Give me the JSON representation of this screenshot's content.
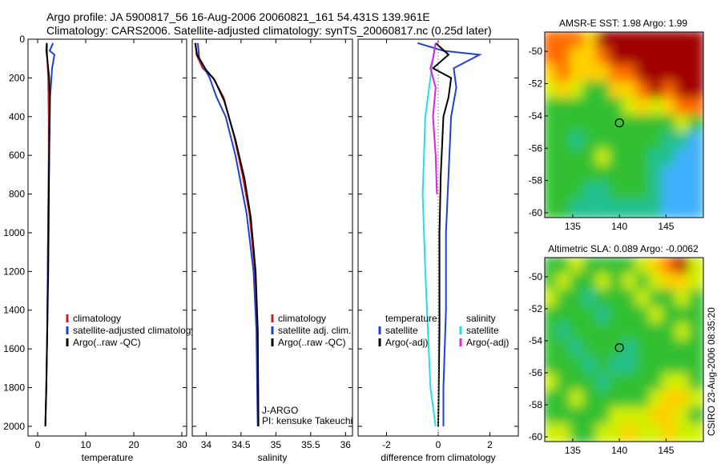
{
  "figure": {
    "title_line1": "Argo profile: JA 5900817_56 16-Aug-2006 20060821_161 54.431S 139.961E",
    "title_line2": "Climatology: CARS2006. Satellite-adjusted climatology: synTS_20060817.nc (0.25d later)",
    "stamp": "CSIRO 23-Aug-2006 08:35:20"
  },
  "colors": {
    "climatology": "#cc1f1f",
    "satellite": "#1f3fd6",
    "argo": "#000000",
    "salinity_satellite": "#22e0e0",
    "salinity_argo": "#e020e0"
  },
  "chart_data": [
    {
      "type": "line",
      "id": "temperature",
      "xlabel": "temperature",
      "ylabel": "",
      "xlim": [
        -2,
        31
      ],
      "ylim": [
        2050,
        0
      ],
      "xticks": [
        0,
        10,
        20,
        30
      ],
      "yticks": [
        0,
        200,
        400,
        600,
        800,
        1000,
        1200,
        1400,
        1600,
        1800,
        2000
      ],
      "legend_location": "lower-right",
      "series": [
        {
          "name": "climatology",
          "color": "#cc1f1f",
          "x": [
            1.9,
            2.0,
            2.2,
            2.3,
            2.3,
            2.2,
            2.1,
            2.0,
            1.8,
            1.6
          ],
          "y": [
            20,
            100,
            200,
            400,
            600,
            900,
            1200,
            1500,
            1800,
            2000
          ]
        },
        {
          "name": "satellite-adjusted climatology",
          "color": "#1f3fd6",
          "x": [
            3.2,
            2.5,
            3.5,
            3.0,
            2.6,
            2.4,
            2.2,
            2.1,
            2.0,
            1.8,
            1.6
          ],
          "y": [
            20,
            60,
            80,
            150,
            300,
            600,
            900,
            1200,
            1500,
            1800,
            2000
          ]
        },
        {
          "name": "Argo(..raw -QC)",
          "color": "#000000",
          "x": [
            1.9,
            1.8,
            2.0,
            2.2,
            2.4,
            2.5,
            2.4,
            2.3,
            2.2,
            2.0,
            1.8,
            1.6
          ],
          "y": [
            20,
            60,
            100,
            150,
            200,
            300,
            600,
            900,
            1200,
            1500,
            1800,
            2000
          ]
        }
      ]
    },
    {
      "type": "line",
      "id": "salinity",
      "xlabel": "salinity",
      "xlim": [
        33.8,
        36.1
      ],
      "ylim": [
        2050,
        0
      ],
      "xticks": [
        34,
        34.5,
        35,
        35.5,
        36
      ],
      "legend_location": "lower-right",
      "annotation": [
        "J-ARGO",
        "PI: kensuke Takeuchi"
      ],
      "series": [
        {
          "name": "climatology",
          "color": "#cc1f1f",
          "x": [
            33.85,
            33.86,
            33.95,
            34.1,
            34.25,
            34.4,
            34.52,
            34.62,
            34.7,
            34.74,
            34.75
          ],
          "y": [
            20,
            80,
            150,
            200,
            300,
            500,
            700,
            900,
            1200,
            1500,
            2000
          ]
        },
        {
          "name": "satellite adj. clim.",
          "color": "#1f3fd6",
          "x": [
            33.88,
            33.9,
            34.05,
            34.15,
            34.28,
            34.42,
            34.58,
            34.68,
            34.72,
            34.74
          ],
          "y": [
            20,
            100,
            200,
            300,
            400,
            600,
            900,
            1200,
            1500,
            2000
          ]
        },
        {
          "name": "Argo(..raw -QC)",
          "color": "#000000",
          "x": [
            33.84,
            33.87,
            34.0,
            34.12,
            34.26,
            34.42,
            34.55,
            34.64,
            34.71,
            34.74,
            34.75
          ],
          "y": [
            20,
            80,
            160,
            210,
            320,
            520,
            720,
            920,
            1200,
            1500,
            2000
          ]
        }
      ]
    },
    {
      "type": "line",
      "id": "difference",
      "xlabel": "difference from climatology",
      "xlim": [
        -3.1,
        3.1
      ],
      "ylim": [
        2050,
        0
      ],
      "xticks": [
        -2,
        0,
        2
      ],
      "legend_location": "lower-right",
      "legend_headers": [
        "temperature",
        "salinity"
      ],
      "series": [
        {
          "name": "satellite",
          "group": "temperature",
          "color": "#1f3fd6",
          "x": [
            -0.8,
            0.2,
            1.6,
            0.6,
            0.7,
            0.5,
            0.4,
            0.3,
            0.3,
            0.2,
            0.2
          ],
          "y": [
            20,
            60,
            80,
            150,
            250,
            400,
            700,
            1000,
            1400,
            1800,
            2000
          ]
        },
        {
          "name": "Argo(-adj)",
          "group": "temperature",
          "color": "#000000",
          "x": [
            -0.1,
            0.4,
            -0.2,
            0.5,
            0.4,
            0.2,
            0.1,
            0.05,
            0.05,
            0.0
          ],
          "y": [
            20,
            80,
            150,
            200,
            300,
            400,
            700,
            1000,
            1500,
            2000
          ]
        },
        {
          "name": "satellite",
          "group": "salinity",
          "color": "#22e0e0",
          "x": [
            -0.1,
            -0.2,
            -0.3,
            -0.5,
            -0.6,
            -0.5,
            -0.4,
            -0.3,
            -0.1
          ],
          "y": [
            20,
            100,
            200,
            400,
            800,
            1200,
            1500,
            1800,
            2000
          ]
        },
        {
          "name": "Argo(-adj)",
          "group": "salinity",
          "color": "#e020e0",
          "x": [
            -0.1,
            -0.2,
            -0.3,
            -0.1,
            -0.2,
            -0.1,
            -0.05
          ],
          "y": [
            20,
            100,
            150,
            250,
            400,
            600,
            800
          ]
        }
      ]
    },
    {
      "type": "heatmap",
      "id": "sst-map",
      "title": "AMSR-E SST: 1.98 Argo: 1.99",
      "xlim": [
        132,
        149
      ],
      "ylim": [
        -60.3,
        -48.8
      ],
      "xticks": [
        135,
        140,
        145
      ],
      "yticks": [
        -50,
        -52,
        -54,
        -56,
        -58,
        -60
      ],
      "marker": {
        "lon": 140,
        "lat": -54.43
      },
      "palette": [
        "#a00000",
        "#ff6a00",
        "#ffd000",
        "#d0f000",
        "#30c030",
        "#20c090",
        "#40b0ff"
      ],
      "field": [
        [
          1,
          1,
          1,
          2,
          0,
          0,
          0,
          0,
          0,
          0,
          0,
          0
        ],
        [
          1,
          1,
          2,
          2,
          1,
          0,
          0,
          0,
          0,
          0,
          0,
          0
        ],
        [
          2,
          1,
          2,
          2,
          2,
          1,
          1,
          0,
          0,
          0,
          0,
          0
        ],
        [
          3,
          2,
          3,
          4,
          4,
          2,
          2,
          1,
          0,
          1,
          0,
          0
        ],
        [
          4,
          4,
          4,
          4,
          4,
          4,
          3,
          2,
          3,
          2,
          1,
          1
        ],
        [
          4,
          4,
          4,
          4,
          4,
          4,
          4,
          4,
          4,
          4,
          3,
          4
        ],
        [
          4,
          4,
          5,
          4,
          4,
          4,
          4,
          4,
          4,
          5,
          5,
          6
        ],
        [
          4,
          4,
          4,
          4,
          3,
          4,
          4,
          4,
          5,
          5,
          6,
          6
        ],
        [
          4,
          4,
          4,
          4,
          4,
          4,
          4,
          4,
          5,
          6,
          6,
          6
        ],
        [
          4,
          4,
          4,
          5,
          5,
          4,
          4,
          4,
          5,
          6,
          6,
          6
        ],
        [
          4,
          4,
          5,
          5,
          5,
          5,
          5,
          5,
          5,
          6,
          6,
          6
        ]
      ]
    },
    {
      "type": "heatmap",
      "id": "sla-map",
      "title": "Altimetric SLA: 0.089 Argo: -0.0062",
      "xlim": [
        132,
        149
      ],
      "ylim": [
        -60.3,
        -48.8
      ],
      "xticks": [
        135,
        140,
        145
      ],
      "yticks": [
        -50,
        -52,
        -54,
        -56,
        -58,
        -60
      ],
      "marker": {
        "lon": 140,
        "lat": -54.43
      },
      "palette": [
        "#a00000",
        "#ff6a00",
        "#ffd000",
        "#d0f000",
        "#30c030",
        "#20c090",
        "#40b0ff"
      ],
      "field": [
        [
          4,
          4,
          3,
          4,
          4,
          4,
          4,
          3,
          2,
          1,
          0,
          3
        ],
        [
          4,
          3,
          4,
          4,
          3,
          4,
          3,
          4,
          3,
          2,
          2,
          3
        ],
        [
          3,
          4,
          4,
          5,
          4,
          4,
          4,
          3,
          4,
          4,
          3,
          4
        ],
        [
          4,
          4,
          4,
          4,
          5,
          4,
          4,
          4,
          3,
          4,
          4,
          4
        ],
        [
          4,
          5,
          4,
          4,
          4,
          4,
          4,
          4,
          4,
          4,
          3,
          4
        ],
        [
          4,
          4,
          5,
          4,
          4,
          4,
          5,
          4,
          4,
          4,
          4,
          4
        ],
        [
          4,
          4,
          4,
          5,
          4,
          5,
          5,
          4,
          4,
          4,
          4,
          4
        ],
        [
          3,
          4,
          4,
          4,
          5,
          4,
          4,
          4,
          4,
          3,
          3,
          4
        ],
        [
          4,
          4,
          3,
          4,
          4,
          4,
          4,
          4,
          3,
          2,
          2,
          3
        ],
        [
          4,
          4,
          4,
          4,
          4,
          3,
          3,
          3,
          2,
          2,
          3,
          4
        ],
        [
          3,
          3,
          4,
          4,
          3,
          3,
          2,
          3,
          3,
          2,
          3,
          3
        ]
      ]
    }
  ]
}
